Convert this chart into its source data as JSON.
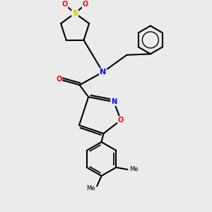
{
  "bg_color": "#ebebeb",
  "atom_colors": {
    "N": "#0000ff",
    "O": "#ff0000",
    "S": "#cccc00",
    "C": "#000000"
  },
  "bond_color": "#000000",
  "bond_width": 1.5
}
